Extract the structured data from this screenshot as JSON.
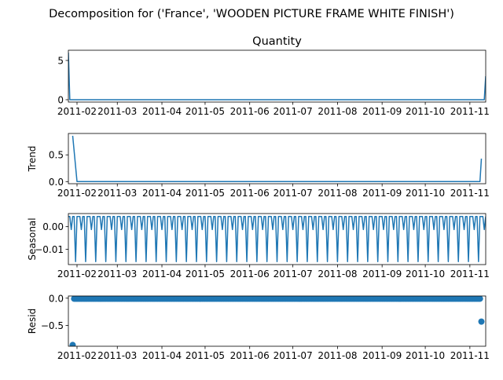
{
  "chart_data": {
    "type": "line",
    "suptitle": "Decomposition for ('France', 'WOODEN PICTURE FRAME WHITE FINISH')",
    "x_tick_labels": [
      "2011-02",
      "2011-03",
      "2011-04",
      "2011-05",
      "2011-06",
      "2011-07",
      "2011-08",
      "2011-09",
      "2011-10",
      "2011-11"
    ],
    "x_range": [
      "2011-01-26",
      "2011-11-12"
    ],
    "panels": [
      {
        "name": "Quantity",
        "title": "Quantity",
        "ylabel": "",
        "type": "line",
        "ylim": [
          -0.3,
          6.3
        ],
        "yticks": [
          0,
          5
        ],
        "ytick_labels": [
          "0",
          "5"
        ],
        "points": [
          [
            "2011-01-26",
            6.0
          ],
          [
            "2011-01-27",
            0.0
          ],
          [
            "2011-11-11",
            0.0
          ],
          [
            "2011-11-12",
            3.0
          ]
        ]
      },
      {
        "name": "Trend",
        "title": "",
        "ylabel": "Trend",
        "type": "line",
        "ylim": [
          -0.04,
          0.9
        ],
        "yticks": [
          0.0,
          0.5
        ],
        "ytick_labels": [
          "0.0",
          "0.5"
        ],
        "points": [
          [
            "2011-01-29",
            0.857
          ],
          [
            "2011-02-01",
            0.0
          ],
          [
            "2011-11-08",
            0.0
          ],
          [
            "2011-11-09",
            0.429
          ]
        ]
      },
      {
        "name": "Seasonal",
        "title": "",
        "ylabel": "Seasonal",
        "type": "line",
        "ylim": [
          -0.0168,
          0.0058
        ],
        "yticks": [
          0.0,
          -0.01
        ],
        "ytick_labels": [
          "0.00",
          "−0.01"
        ],
        "start": "2011-01-26",
        "end": "2011-11-12",
        "weekly_pattern": [
          0.0045,
          0.0045,
          -0.0013,
          0.0045,
          0.0045,
          -0.0155,
          0.0045
        ]
      },
      {
        "name": "Resid",
        "title": "",
        "ylabel": "Resid",
        "type": "scatter",
        "ylim": [
          -0.88,
          0.04
        ],
        "yticks": [
          0.0,
          -0.5
        ],
        "ytick_labels": [
          "0.0",
          "−0.5"
        ],
        "start": "2011-01-29",
        "end": "2011-11-09",
        "default_value": -0.01,
        "special_points": [
          [
            "2011-01-29",
            -0.857
          ],
          [
            "2011-11-09",
            -0.429
          ]
        ]
      }
    ],
    "color": "#1f77b4"
  }
}
